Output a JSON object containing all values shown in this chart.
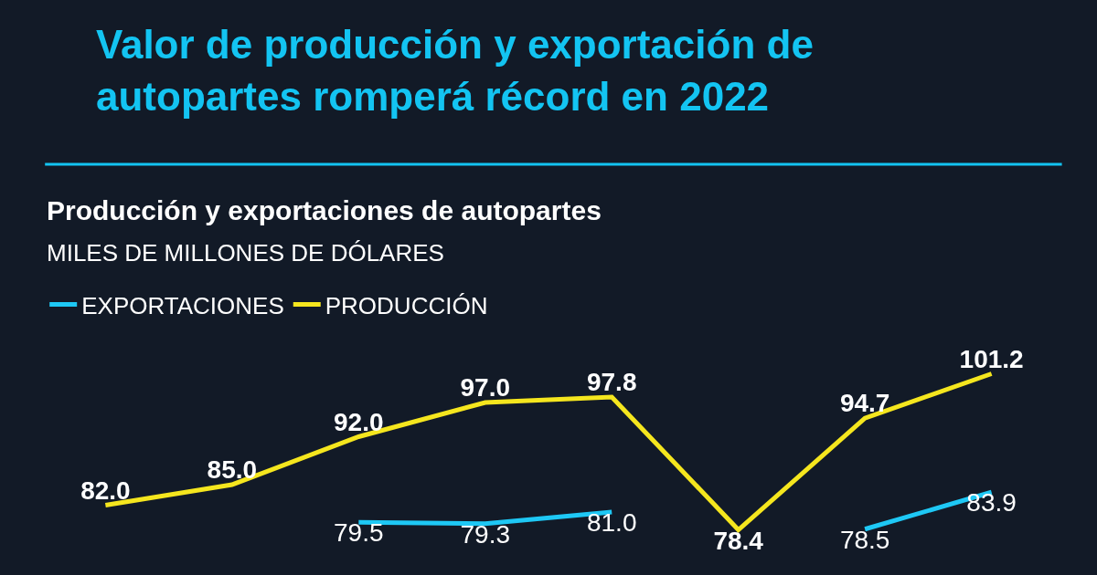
{
  "chart_data": {
    "type": "line",
    "title": "Valor de producción y exportación de autopartes romperá récord en 2022",
    "subtitle": "Producción y exportaciones de autopartes",
    "ylabel": "MILES DE MILLONES DE DÓLARES",
    "categories": [
      null,
      null,
      null,
      null,
      null,
      null,
      null,
      null
    ],
    "series": [
      {
        "name": "EXPORTACIONES",
        "color": "#1ec8f5",
        "values": [
          null,
          null,
          79.5,
          79.3,
          81.0,
          null,
          78.5,
          83.9
        ],
        "value_labels": [
          null,
          null,
          "79.5",
          "79.3",
          "81.0",
          null,
          "78.5",
          "83.9"
        ]
      },
      {
        "name": "PRODUCCIÓN",
        "color": "#f5e61e",
        "values": [
          82.0,
          85.0,
          92.0,
          97.0,
          97.8,
          78.4,
          94.7,
          101.2
        ],
        "value_labels": [
          "82.0",
          "85.0",
          "92.0",
          "97.0",
          "97.8",
          "78.4",
          "94.7",
          "101.2"
        ]
      }
    ],
    "tick_labels": false,
    "grid": false,
    "legend": "top left",
    "marker": "none"
  }
}
